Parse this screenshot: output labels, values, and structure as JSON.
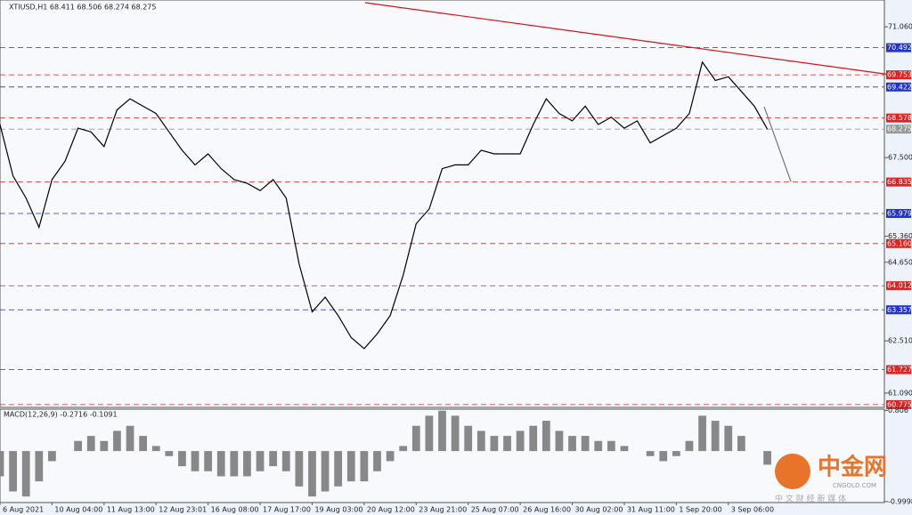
{
  "chart_data": [
    {
      "type": "line",
      "title": "XTIUSD,H1  68.411 68.506 68.274 68.275",
      "xlim": [
        0,
        68
      ],
      "ylim": [
        60.7,
        71.79
      ],
      "yticks": [
        {
          "value": 71.06,
          "label": "71.060"
        },
        {
          "value": 67.5,
          "label": "67.500"
        },
        {
          "value": 65.36,
          "label": "65.360"
        },
        {
          "value": 64.65,
          "label": "64.650"
        },
        {
          "value": 62.51,
          "label": "62.510"
        },
        {
          "value": 61.09,
          "label": "61.090"
        }
      ],
      "levels": {
        "values": [
          70.492,
          69.753,
          69.422,
          68.578,
          68.275,
          66.835,
          65.979,
          65.16,
          64.012,
          63.357,
          61.727,
          60.775
        ],
        "value_labels": [
          "70.492",
          "69.753",
          "69.422",
          "68.578",
          "68.275",
          "66.835",
          "65.979",
          "65.160",
          "64.012",
          "63.357",
          "61.727",
          "60.775"
        ],
        "colors": [
          "#2233cc",
          "#dd2222",
          "#2233cc",
          "#dd2222",
          "#999999",
          "#dd2222",
          "#2233cc",
          "#dd2222",
          "#dd2222",
          "#2233cc",
          "#dd2222",
          "#dd2222"
        ]
      },
      "series": [
        {
          "name": "XTIUSD",
          "color": "#000000",
          "x": [
            0,
            1,
            2,
            3,
            4,
            5,
            6,
            7,
            8,
            9,
            10,
            11,
            12,
            13,
            14,
            15,
            16,
            17,
            18,
            19,
            20,
            21,
            22,
            23,
            24,
            25,
            26,
            27,
            28,
            29,
            30,
            31,
            32,
            33,
            34,
            35,
            36,
            37,
            38,
            39,
            40,
            41,
            42,
            43,
            44,
            45,
            46,
            47,
            48,
            49,
            50,
            51,
            52,
            53,
            54,
            55,
            56,
            57,
            58,
            59
          ],
          "values": [
            68.4,
            67.0,
            66.4,
            65.6,
            66.9,
            67.4,
            68.3,
            68.2,
            67.8,
            68.8,
            69.1,
            68.9,
            68.7,
            68.2,
            67.7,
            67.3,
            67.6,
            67.2,
            66.9,
            66.8,
            66.6,
            66.9,
            66.4,
            64.6,
            63.3,
            63.7,
            63.2,
            62.6,
            62.3,
            62.7,
            63.2,
            64.3,
            65.7,
            66.1,
            67.2,
            67.3,
            67.3,
            67.7,
            67.6,
            67.6,
            67.6,
            68.4,
            69.1,
            68.7,
            68.5,
            68.9,
            68.4,
            68.6,
            68.3,
            68.5,
            67.9,
            68.1,
            68.3,
            68.7,
            70.1,
            69.6,
            69.7,
            69.3,
            68.9,
            68.275
          ]
        }
      ]
    },
    {
      "type": "bar",
      "title": "MACD(12,26,9) -0.2716 -0.1091",
      "xlim": [
        0,
        68
      ],
      "ylim": [
        -1.02,
        0.83
      ],
      "yticks": [
        0.806,
        -0.9998
      ],
      "xticks": [
        {
          "value": 0,
          "label": "6 Aug 2021"
        },
        {
          "value": 4,
          "label": "10 Aug 04:00"
        },
        {
          "value": 8,
          "label": "11 Aug 13:00"
        },
        {
          "value": 12,
          "label": "12 Aug 23:01"
        },
        {
          "value": 16,
          "label": "16 Aug 08:00"
        },
        {
          "value": 20,
          "label": "17 Aug 17:00"
        },
        {
          "value": 24,
          "label": "19 Aug 03:00"
        },
        {
          "value": 28,
          "label": "20 Aug 12:00"
        },
        {
          "value": 32,
          "label": "23 Aug 21:00"
        },
        {
          "value": 36,
          "label": "25 Aug 07:00"
        },
        {
          "value": 40,
          "label": "26 Aug 16:00"
        },
        {
          "value": 44,
          "label": "30 Aug 02:00"
        },
        {
          "value": 48,
          "label": "31 Aug 11:00"
        },
        {
          "value": 52,
          "label": "1 Sep 20:00"
        },
        {
          "value": 56,
          "label": "3 Sep 06:00"
        }
      ],
      "series": [
        {
          "name": "MACD",
          "color": "#888888",
          "x": [
            0,
            1,
            2,
            3,
            4,
            5,
            6,
            7,
            8,
            9,
            10,
            11,
            12,
            13,
            14,
            15,
            16,
            17,
            18,
            19,
            20,
            21,
            22,
            23,
            24,
            25,
            26,
            27,
            28,
            29,
            30,
            31,
            32,
            33,
            34,
            35,
            36,
            37,
            38,
            39,
            40,
            41,
            42,
            43,
            44,
            45,
            46,
            47,
            48,
            49,
            50,
            51,
            52,
            53,
            54,
            55,
            56,
            57,
            58,
            59
          ],
          "values": [
            -0.5,
            -0.8,
            -0.9,
            -0.6,
            -0.2,
            0.0,
            0.2,
            0.3,
            0.2,
            0.4,
            0.5,
            0.3,
            0.1,
            -0.1,
            -0.3,
            -0.4,
            -0.4,
            -0.5,
            -0.5,
            -0.5,
            -0.4,
            -0.3,
            -0.4,
            -0.7,
            -0.9,
            -0.8,
            -0.7,
            -0.6,
            -0.6,
            -0.4,
            -0.2,
            0.1,
            0.5,
            0.7,
            0.8,
            0.7,
            0.5,
            0.4,
            0.3,
            0.3,
            0.4,
            0.5,
            0.6,
            0.4,
            0.3,
            0.3,
            0.2,
            0.2,
            0.1,
            0.0,
            -0.1,
            -0.2,
            -0.1,
            0.2,
            0.7,
            0.6,
            0.5,
            0.3,
            0.0,
            -0.27
          ]
        }
      ]
    }
  ],
  "watermark": {
    "name": "中金网",
    "url": "CNGOLD.COM",
    "tagline": "中 文 财 经 新 媒 体"
  }
}
